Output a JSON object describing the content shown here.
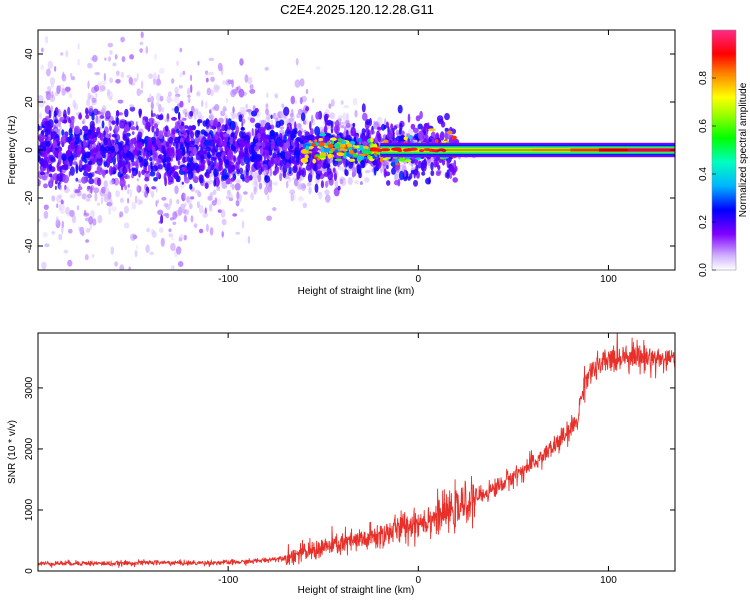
{
  "title": "C2E4.2025.120.12.28.G11",
  "chart_data": [
    {
      "type": "heatmap",
      "xlabel": "Height of straight line (km)",
      "ylabel": "Frequency (Hz)",
      "xlim": [
        -200,
        135
      ],
      "ylim": [
        -50,
        50
      ],
      "x_ticks": [
        -100,
        0,
        100
      ],
      "y_ticks": [
        -40,
        -20,
        0,
        20,
        40
      ],
      "colorbar": {
        "label": "Normalized spectral amplitude",
        "range": [
          0.0,
          1.0
        ],
        "ticks": [
          0.0,
          0.2,
          0.4,
          0.6,
          0.8
        ],
        "colormap": [
          "#ffffff",
          "#c9a6ff",
          "#7a00ff",
          "#0000ff",
          "#00c8ff",
          "#00ff00",
          "#ffff00",
          "#ff8000",
          "#ff0000",
          "#ff2080"
        ]
      },
      "features": {
        "carrier_frequency_hz": 0,
        "noise_region_km": [
          -200,
          -30
        ],
        "transition_region_km": [
          -30,
          20
        ],
        "clean_region_km": [
          20,
          135
        ],
        "noise_spread_hz": 50
      },
      "grid": false
    },
    {
      "type": "line",
      "xlabel": "Height of straight line (km)",
      "ylabel": "SNR (10 * v/v)",
      "xlim": [
        -200,
        135
      ],
      "ylim": [
        0,
        3900
      ],
      "x_ticks": [
        -100,
        0,
        100
      ],
      "y_ticks": [
        0,
        1000,
        2000,
        3000
      ],
      "series": [
        {
          "color": "#e8302a",
          "x": [
            -200,
            -180,
            -160,
            -140,
            -120,
            -100,
            -90,
            -80,
            -70,
            -60,
            -50,
            -40,
            -30,
            -20,
            -10,
            0,
            10,
            20,
            30,
            40,
            50,
            60,
            70,
            80,
            84,
            86,
            88,
            90,
            100,
            110,
            120,
            135
          ],
          "y": [
            120,
            130,
            120,
            140,
            130,
            140,
            150,
            180,
            220,
            300,
            380,
            450,
            500,
            580,
            700,
            800,
            900,
            1000,
            1200,
            1350,
            1550,
            1750,
            2000,
            2300,
            2500,
            2900,
            3150,
            3250,
            3450,
            3550,
            3500,
            3450
          ]
        }
      ],
      "grid": false
    }
  ]
}
